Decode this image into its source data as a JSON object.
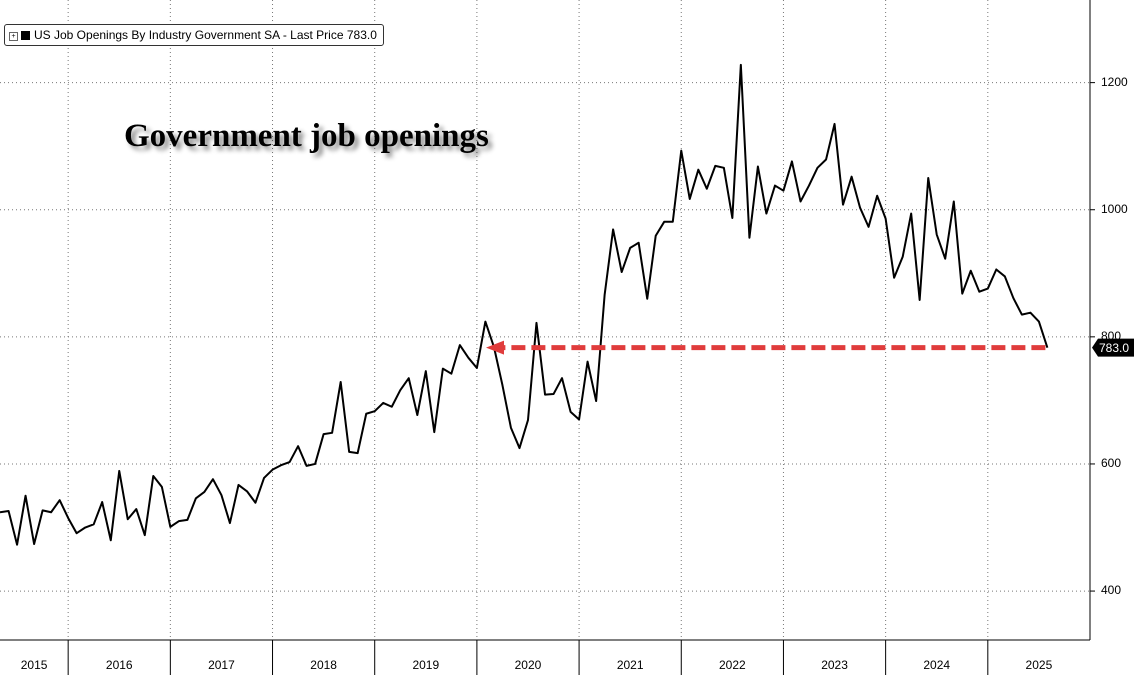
{
  "chart_data": {
    "type": "line",
    "title": "Government job openings",
    "legend_suffix": "- Last Price",
    "x": [
      2015.333,
      2015.417,
      2015.5,
      2015.583,
      2015.667,
      2015.75,
      2015.833,
      2015.917,
      2016,
      2016.083,
      2016.167,
      2016.25,
      2016.333,
      2016.417,
      2016.5,
      2016.583,
      2016.667,
      2016.75,
      2016.833,
      2016.917,
      2017,
      2017.083,
      2017.167,
      2017.25,
      2017.333,
      2017.417,
      2017.5,
      2017.583,
      2017.667,
      2017.75,
      2017.833,
      2017.917,
      2018,
      2018.083,
      2018.167,
      2018.25,
      2018.333,
      2018.417,
      2018.5,
      2018.583,
      2018.667,
      2018.75,
      2018.833,
      2018.917,
      2019,
      2019.083,
      2019.167,
      2019.25,
      2019.333,
      2019.417,
      2019.5,
      2019.583,
      2019.667,
      2019.75,
      2019.833,
      2019.917,
      2020,
      2020.083,
      2020.167,
      2020.25,
      2020.333,
      2020.417,
      2020.5,
      2020.583,
      2020.667,
      2020.75,
      2020.833,
      2020.917,
      2021,
      2021.083,
      2021.167,
      2021.25,
      2021.333,
      2021.417,
      2021.5,
      2021.583,
      2021.667,
      2021.75,
      2021.833,
      2021.917,
      2022,
      2022.083,
      2022.167,
      2022.25,
      2022.333,
      2022.417,
      2022.5,
      2022.583,
      2022.667,
      2022.75,
      2022.833,
      2022.917,
      2023,
      2023.083,
      2023.167,
      2023.25,
      2023.333,
      2023.417,
      2023.5,
      2023.583,
      2023.667,
      2023.75,
      2023.833,
      2023.917,
      2024,
      2024.083,
      2024.167,
      2024.25,
      2024.333,
      2024.417,
      2024.5,
      2024.583,
      2024.667,
      2024.75,
      2024.833,
      2024.917,
      2025,
      2025.083,
      2025.167,
      2025.25,
      2025.333,
      2025.417,
      2025.5,
      2025.583
    ],
    "series": [
      {
        "name": "US Job Openings By Industry Government SA",
        "color": "#000000",
        "last_label": "783.0",
        "values": [
          524,
          526,
          473,
          550,
          474,
          527,
          524,
          543,
          515,
          491,
          500,
          505,
          540,
          480,
          589,
          513,
          529,
          488,
          581,
          564,
          501,
          510,
          512,
          546,
          556,
          576,
          551,
          507,
          567,
          557,
          539,
          578,
          591,
          598,
          603,
          628,
          597,
          600,
          647,
          649,
          729,
          619,
          617,
          679,
          683,
          696,
          690,
          716,
          735,
          677,
          746,
          650,
          750,
          742,
          787,
          767,
          751,
          824,
          784,
          724,
          657,
          625,
          669,
          822,
          709,
          710,
          735,
          682,
          670,
          761,
          699,
          866,
          969,
          902,
          940,
          948,
          860,
          959,
          981,
          981,
          1093,
          1017,
          1063,
          1033,
          1069,
          1066,
          987,
          1228,
          956,
          1068,
          994,
          1038,
          1030,
          1076,
          1013,
          1038,
          1066,
          1079,
          1135,
          1008,
          1052,
          1003,
          973,
          1022,
          986,
          893,
          926,
          994,
          858,
          1050,
          961,
          923,
          1013,
          868,
          904,
          871,
          876,
          906,
          895,
          861,
          835,
          838,
          824,
          783
        ]
      }
    ],
    "xlim": [
      2015.333,
      2026
    ],
    "xticks": [
      2015,
      2016,
      2017,
      2018,
      2019,
      2020,
      2021,
      2022,
      2023,
      2024,
      2025
    ],
    "ylim": [
      323,
      1330
    ],
    "yticks": [
      400,
      600,
      800,
      1000,
      1200
    ],
    "grid": true,
    "arrow_color": "#e03c3c"
  }
}
